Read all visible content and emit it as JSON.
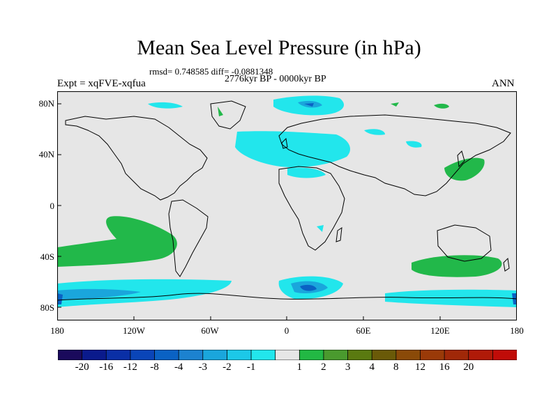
{
  "title": "Mean Sea Level Pressure (in hPa)",
  "stats": "rmsd= 0.748585 diff= -0.0881348",
  "period": "2776kyr BP - 0000kyr BP",
  "experiment": "Expt = xqFVE-xqfua",
  "season": "ANN",
  "lat_ticks": [
    "80N",
    "40N",
    "0",
    "40S",
    "80S"
  ],
  "lon_ticks": [
    "180",
    "120W",
    "60W",
    "0",
    "60E",
    "120E",
    "180"
  ],
  "colorbar": {
    "labels": [
      "-20",
      "-16",
      "-12",
      "-8",
      "-4",
      "-3",
      "-2",
      "-1",
      "1",
      "2",
      "3",
      "4",
      "8",
      "12",
      "16",
      "20"
    ],
    "colors": [
      "#1a0a5c",
      "#0a1a8c",
      "#0a2fa6",
      "#0a45b8",
      "#0a62c4",
      "#1c82d0",
      "#1aa6dc",
      "#1cc8e8",
      "#22e6ec",
      "#e6e6e6",
      "#22b844",
      "#4a9a2e",
      "#5a7a10",
      "#6a5a08",
      "#8a4a08",
      "#9a3a08",
      "#a02808",
      "#b01a08",
      "#c00c08"
    ]
  },
  "colors": {
    "background": "#e6e6e6",
    "positive": "#22b84a",
    "negative_light": "#22e6ec",
    "negative_mid": "#1aa6dc",
    "negative_dark": "#0a62c4"
  }
}
